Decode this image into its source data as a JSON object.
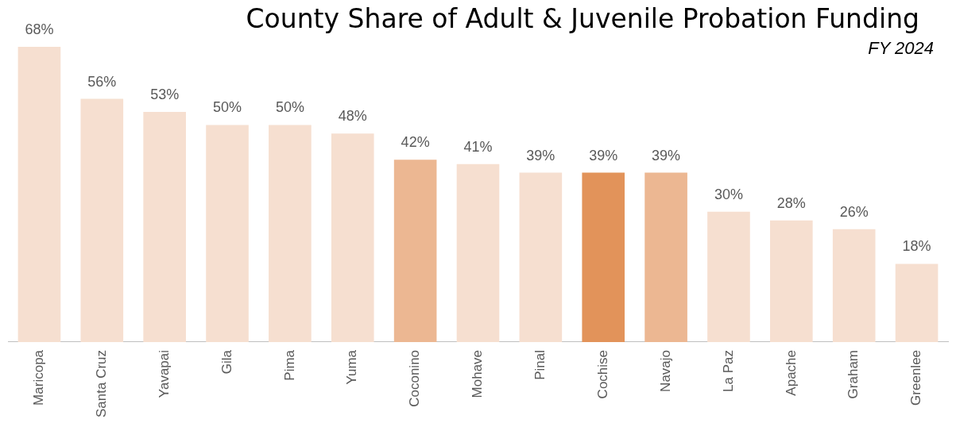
{
  "chart_data": {
    "type": "bar",
    "title": "County Share of Adult & Juvenile Probation Funding",
    "subtitle": "FY 2024",
    "categories": [
      "Maricopa",
      "Santa Cruz",
      "Yavapai",
      "Gila",
      "Pima",
      "Yuma",
      "Coconino",
      "Mohave",
      "Pinal",
      "Cochise",
      "Navajo",
      "La Paz",
      "Apache",
      "Graham",
      "Greenlee"
    ],
    "values": [
      68,
      56,
      53,
      50,
      50,
      48,
      42,
      41,
      39,
      39,
      39,
      30,
      28,
      26,
      18
    ],
    "colors": [
      "#f6dfd0",
      "#f6dfd0",
      "#f6dfd0",
      "#f6dfd0",
      "#f6dfd0",
      "#f6dfd0",
      "#ecb792",
      "#f6dfd0",
      "#f6dfd0",
      "#e2935a",
      "#ecb792",
      "#f6dfd0",
      "#f6dfd0",
      "#f6dfd0",
      "#f6dfd0"
    ],
    "value_labels": [
      "68%",
      "56%",
      "53%",
      "50%",
      "50%",
      "48%",
      "42%",
      "41%",
      "39%",
      "39%",
      "39%",
      "30%",
      "28%",
      "26%",
      "18%"
    ],
    "grid": false,
    "legend": false
  }
}
